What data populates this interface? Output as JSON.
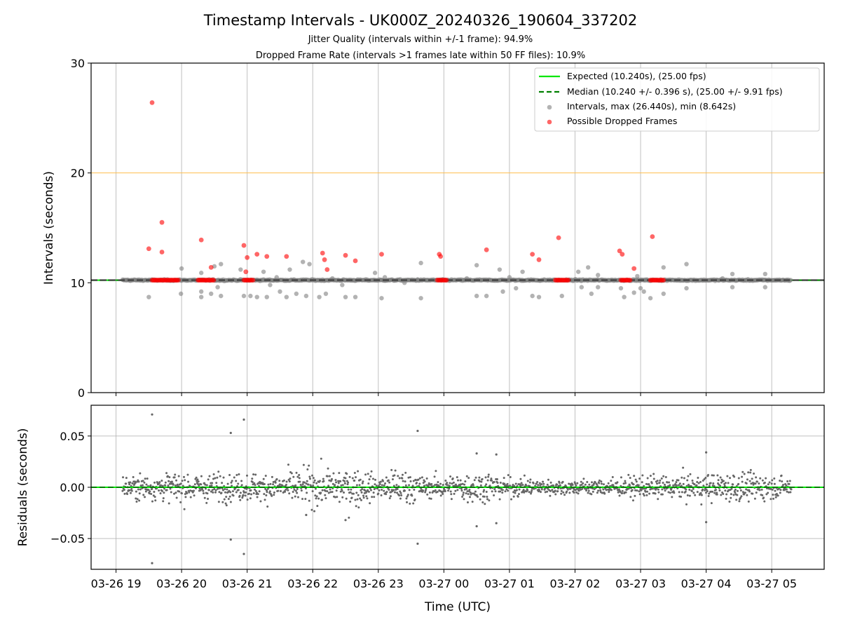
{
  "chart_data": {
    "title": "Timestamp Intervals - UK000Z_20240326_190604_337202",
    "subtitle_1": "Jitter Quality (intervals within +/-1 frame): 94.9%",
    "subtitle_2": "Dropped Frame Rate (intervals >1 frames late within 50 FF files): 10.9%",
    "xlabel": "Time (UTC)",
    "x_ticks": [
      "03-26 19",
      "03-26 20",
      "03-26 21",
      "03-26 22",
      "03-26 23",
      "03-27 00",
      "03-27 01",
      "03-27 02",
      "03-27 03",
      "03-27 04",
      "03-27 05"
    ],
    "x_range_hours": [
      18.62,
      29.8
    ],
    "data_x_range_hours": [
      19.1,
      29.3
    ],
    "panels": [
      {
        "type": "scatter",
        "ylabel": "Intervals (seconds)",
        "ylim": [
          0,
          30
        ],
        "yticks": [
          "0",
          "10",
          "20",
          "30"
        ],
        "grid": "vertical",
        "legend_position": "upper right",
        "reference_lines": [
          {
            "name": "Expected (10.240s), (25.00 fps)",
            "y": 10.24,
            "style": "solid",
            "color": "#00e600"
          },
          {
            "name": "Median (10.240 +/- 0.396 s), (25.00 +/- 9.91 fps)",
            "y": 10.24,
            "style": "dashed",
            "color": "#008000"
          },
          {
            "name": "",
            "y": 20,
            "style": "solid",
            "color": "#ffbe4d"
          }
        ],
        "series": [
          {
            "name": "Intervals, max (26.440s), min (8.642s)",
            "color": "#808080",
            "baseline": 10.24,
            "outliers": [
              {
                "x": 19.5,
                "y": 8.7
              },
              {
                "x": 20.0,
                "y": 11.3
              },
              {
                "x": 19.99,
                "y": 9.0
              },
              {
                "x": 20.3,
                "y": 10.9
              },
              {
                "x": 20.3,
                "y": 9.2
              },
              {
                "x": 20.3,
                "y": 8.7
              },
              {
                "x": 20.45,
                "y": 9.0
              },
              {
                "x": 20.5,
                "y": 11.5
              },
              {
                "x": 20.55,
                "y": 9.6
              },
              {
                "x": 20.6,
                "y": 11.7
              },
              {
                "x": 20.6,
                "y": 8.8
              },
              {
                "x": 20.9,
                "y": 11.2
              },
              {
                "x": 20.95,
                "y": 8.8
              },
              {
                "x": 21.05,
                "y": 8.8
              },
              {
                "x": 21.15,
                "y": 8.7
              },
              {
                "x": 21.25,
                "y": 11.0
              },
              {
                "x": 21.3,
                "y": 8.7
              },
              {
                "x": 21.35,
                "y": 9.8
              },
              {
                "x": 21.45,
                "y": 10.5
              },
              {
                "x": 21.5,
                "y": 9.2
              },
              {
                "x": 21.6,
                "y": 8.7
              },
              {
                "x": 21.65,
                "y": 11.2
              },
              {
                "x": 21.75,
                "y": 9.0
              },
              {
                "x": 21.85,
                "y": 11.9
              },
              {
                "x": 21.9,
                "y": 8.8
              },
              {
                "x": 21.95,
                "y": 11.7
              },
              {
                "x": 22.1,
                "y": 8.7
              },
              {
                "x": 22.2,
                "y": 9.0
              },
              {
                "x": 22.3,
                "y": 10.4
              },
              {
                "x": 22.45,
                "y": 9.8
              },
              {
                "x": 22.5,
                "y": 8.7
              },
              {
                "x": 22.65,
                "y": 8.7
              },
              {
                "x": 22.95,
                "y": 10.9
              },
              {
                "x": 23.05,
                "y": 8.6
              },
              {
                "x": 23.1,
                "y": 10.5
              },
              {
                "x": 23.4,
                "y": 10.0
              },
              {
                "x": 23.6,
                "y": 10.3
              },
              {
                "x": 23.65,
                "y": 11.8
              },
              {
                "x": 23.65,
                "y": 8.6
              },
              {
                "x": 24.35,
                "y": 10.4
              },
              {
                "x": 24.5,
                "y": 11.6
              },
              {
                "x": 24.5,
                "y": 8.8
              },
              {
                "x": 24.65,
                "y": 8.8
              },
              {
                "x": 24.85,
                "y": 11.2
              },
              {
                "x": 24.9,
                "y": 9.2
              },
              {
                "x": 25.0,
                "y": 10.5
              },
              {
                "x": 25.1,
                "y": 9.5
              },
              {
                "x": 25.2,
                "y": 11.0
              },
              {
                "x": 25.35,
                "y": 8.8
              },
              {
                "x": 25.45,
                "y": 8.7
              },
              {
                "x": 25.8,
                "y": 8.8
              },
              {
                "x": 26.05,
                "y": 11.0
              },
              {
                "x": 26.1,
                "y": 9.6
              },
              {
                "x": 26.2,
                "y": 11.4
              },
              {
                "x": 26.25,
                "y": 9.0
              },
              {
                "x": 26.35,
                "y": 10.7
              },
              {
                "x": 26.35,
                "y": 9.6
              },
              {
                "x": 26.7,
                "y": 9.5
              },
              {
                "x": 26.75,
                "y": 8.7
              },
              {
                "x": 26.9,
                "y": 9.1
              },
              {
                "x": 26.95,
                "y": 10.6
              },
              {
                "x": 27.0,
                "y": 9.5
              },
              {
                "x": 27.05,
                "y": 9.2
              },
              {
                "x": 27.15,
                "y": 8.6
              },
              {
                "x": 27.35,
                "y": 11.4
              },
              {
                "x": 27.35,
                "y": 9.0
              },
              {
                "x": 27.7,
                "y": 11.7
              },
              {
                "x": 27.7,
                "y": 9.5
              },
              {
                "x": 28.25,
                "y": 10.4
              },
              {
                "x": 28.4,
                "y": 10.8
              },
              {
                "x": 28.4,
                "y": 9.6
              },
              {
                "x": 28.9,
                "y": 10.8
              },
              {
                "x": 28.9,
                "y": 9.6
              }
            ]
          },
          {
            "name": "Possible Dropped Frames",
            "color": "#ff0000",
            "points": [
              {
                "x": 19.5,
                "y": 13.1
              },
              {
                "x": 19.55,
                "y": 26.4
              },
              {
                "x": 19.7,
                "y": 15.5
              },
              {
                "x": 19.7,
                "y": 12.8
              },
              {
                "x": 20.3,
                "y": 13.9
              },
              {
                "x": 20.45,
                "y": 11.4
              },
              {
                "x": 20.95,
                "y": 13.4
              },
              {
                "x": 20.98,
                "y": 11.0
              },
              {
                "x": 21.0,
                "y": 12.3
              },
              {
                "x": 21.15,
                "y": 12.6
              },
              {
                "x": 21.3,
                "y": 12.4
              },
              {
                "x": 21.6,
                "y": 12.4
              },
              {
                "x": 22.15,
                "y": 12.7
              },
              {
                "x": 22.18,
                "y": 12.1
              },
              {
                "x": 22.22,
                "y": 11.2
              },
              {
                "x": 22.5,
                "y": 12.5
              },
              {
                "x": 22.65,
                "y": 12.0
              },
              {
                "x": 23.05,
                "y": 12.6
              },
              {
                "x": 23.93,
                "y": 12.6
              },
              {
                "x": 23.95,
                "y": 12.4
              },
              {
                "x": 24.65,
                "y": 13.0
              },
              {
                "x": 25.35,
                "y": 12.6
              },
              {
                "x": 25.45,
                "y": 12.1
              },
              {
                "x": 25.75,
                "y": 14.1
              },
              {
                "x": 26.68,
                "y": 12.9
              },
              {
                "x": 26.72,
                "y": 12.6
              },
              {
                "x": 26.9,
                "y": 11.3
              },
              {
                "x": 27.18,
                "y": 14.2
              }
            ],
            "clusters_at_10_24": [
              [
                19.55,
                19.95
              ],
              [
                20.25,
                20.5
              ],
              [
                20.95,
                21.1
              ],
              [
                23.9,
                24.05
              ],
              [
                25.7,
                25.9
              ],
              [
                26.7,
                26.85
              ],
              [
                27.15,
                27.35
              ]
            ]
          }
        ]
      },
      {
        "type": "scatter",
        "ylabel": "Residuals (seconds)",
        "ylim": [
          -0.08,
          0.08
        ],
        "yticks": [
          "−0.05",
          "0.00",
          "0.05"
        ],
        "ytick_values": [
          -0.05,
          0,
          0.05
        ],
        "grid": "both",
        "reference_lines": [
          {
            "y": 0,
            "style": "solid",
            "color": "#00e600"
          },
          {
            "y": 0,
            "style": "dashed",
            "color": "#008000"
          }
        ],
        "series": [
          {
            "name": "",
            "color": "#666666",
            "extremes": [
              {
                "x": 19.55,
                "y": 0.071
              },
              {
                "x": 19.55,
                "y": -0.074
              },
              {
                "x": 20.75,
                "y": 0.053
              },
              {
                "x": 20.75,
                "y": -0.051
              },
              {
                "x": 20.95,
                "y": 0.066
              },
              {
                "x": 20.95,
                "y": -0.065
              },
              {
                "x": 23.6,
                "y": 0.055
              },
              {
                "x": 23.6,
                "y": -0.055
              },
              {
                "x": 24.5,
                "y": 0.033
              },
              {
                "x": 24.5,
                "y": -0.038
              },
              {
                "x": 24.8,
                "y": 0.032
              },
              {
                "x": 24.8,
                "y": -0.035
              },
              {
                "x": 28.0,
                "y": 0.034
              },
              {
                "x": 28.0,
                "y": -0.034
              },
              {
                "x": 22.5,
                "y": -0.032
              },
              {
                "x": 21.9,
                "y": -0.027
              }
            ],
            "band": [
              {
                "x": 19.1,
                "half_width": 0.012
              },
              {
                "x": 20.0,
                "half_width": 0.015
              },
              {
                "x": 21.0,
                "half_width": 0.014
              },
              {
                "x": 22.2,
                "half_width": 0.02
              },
              {
                "x": 22.6,
                "half_width": 0.022
              },
              {
                "x": 23.0,
                "half_width": 0.012
              },
              {
                "x": 23.35,
                "half_width": 0.022
              },
              {
                "x": 23.7,
                "half_width": 0.01
              },
              {
                "x": 24.6,
                "half_width": 0.018
              },
              {
                "x": 25.0,
                "half_width": 0.01
              },
              {
                "x": 26.0,
                "half_width": 0.008
              },
              {
                "x": 27.3,
                "half_width": 0.012
              },
              {
                "x": 28.5,
                "half_width": 0.016
              },
              {
                "x": 29.3,
                "half_width": 0.01
              }
            ]
          }
        ]
      }
    ]
  }
}
